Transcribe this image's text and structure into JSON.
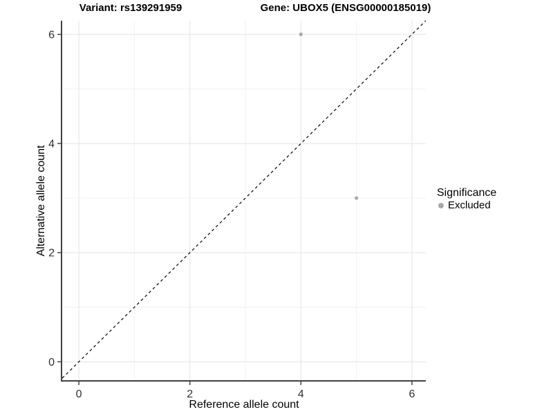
{
  "figure": {
    "title_left": "Variant: rs139291959",
    "title_right": "Gene: UBOX5 (ENSG00000185019)"
  },
  "legend": {
    "title": "Significance",
    "items": [
      {
        "label": "Excluded",
        "color": "#a8a8a8",
        "marker": "circle"
      }
    ],
    "position": "right"
  },
  "chart_data": {
    "type": "scatter",
    "title_left": "Variant: rs139291959",
    "title_right": "Gene: UBOX5 (ENSG00000185019)",
    "xlabel": "Reference allele count",
    "ylabel": "Alternative allele count",
    "xlim": [
      -0.3,
      6.25
    ],
    "ylim": [
      -0.35,
      6.25
    ],
    "x_ticks": [
      0,
      2,
      4,
      6
    ],
    "y_ticks": [
      0,
      2,
      4,
      6
    ],
    "x_minor_gridlines": [
      1,
      3,
      5
    ],
    "y_minor_gridlines": [
      1,
      3,
      5
    ],
    "grid": true,
    "legend_position": "right",
    "series": [
      {
        "name": "Excluded",
        "color": "#a8a8a8",
        "points": [
          {
            "x": 4,
            "y": 6
          },
          {
            "x": 5,
            "y": 3
          }
        ]
      }
    ],
    "reference_line": {
      "kind": "identity y=x",
      "style": "dashed",
      "color": "#000000"
    }
  },
  "colors": {
    "background": "#ffffff",
    "major_gridline": "#e3e3e3",
    "minor_gridline": "#f0f0f0",
    "axis_line": "#404040",
    "tick_label": "#303030",
    "point": "#a8a8a8",
    "dashed_line": "#000000"
  }
}
